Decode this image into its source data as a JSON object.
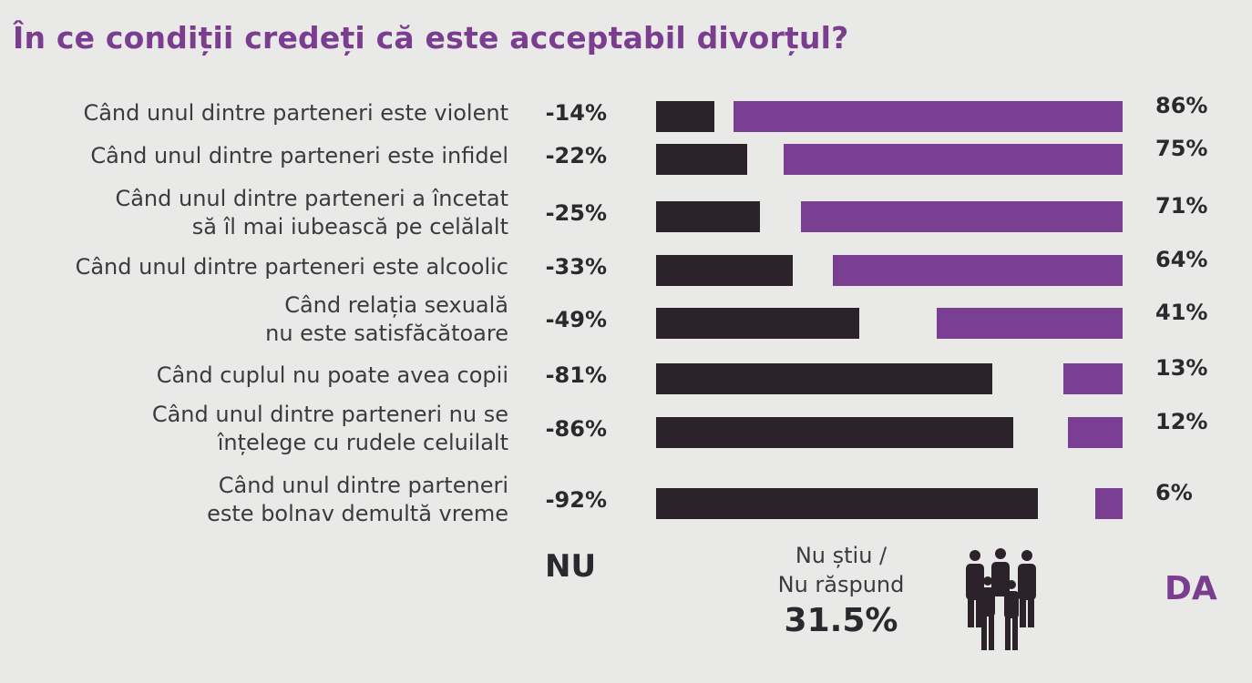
{
  "chart_data": {
    "type": "bar",
    "title": "În ce condiții credeți că este acceptabil divorțul?",
    "categories": [
      [
        "Când unul dintre parteneri este violent"
      ],
      [
        "Când unul dintre parteneri este infidel"
      ],
      [
        "Când unul dintre parteneri a încetat",
        "să îl mai iubească pe celălalt"
      ],
      [
        "Când unul dintre parteneri este alcoolic"
      ],
      [
        "Când relația sexuală",
        "nu este satisfăcătoare"
      ],
      [
        "Când cuplul nu poate avea copii"
      ],
      [
        "Când unul dintre parteneri nu se",
        "înțelege cu rudele celuilalt"
      ],
      [
        "Când unul dintre parteneri",
        "este bolnav demultă vreme"
      ]
    ],
    "series": [
      {
        "name": "NU",
        "values": [
          -14,
          -22,
          -25,
          -33,
          -49,
          -81,
          -86,
          -92
        ],
        "labels": [
          "-14%",
          "-22%",
          "-25%",
          "-33%",
          "-49%",
          "-81%",
          "-86%",
          "-92%"
        ]
      },
      {
        "name": "DA",
        "values": [
          86,
          75,
          71,
          64,
          41,
          13,
          12,
          6
        ],
        "labels": [
          "86%",
          "75%",
          "71%",
          "64%",
          "41%",
          "13%",
          "12%",
          "6%"
        ]
      }
    ],
    "colors": {
      "nu": "#2c2229",
      "da": "#7a3f93",
      "title": "#7b3d8f"
    },
    "footer": {
      "nu_label": "NU",
      "da_label": "DA",
      "no_answer_lines": [
        "Nu știu /",
        "Nu răspund"
      ],
      "no_answer_value": "31.5%",
      "icon": "people-group-icon"
    }
  }
}
